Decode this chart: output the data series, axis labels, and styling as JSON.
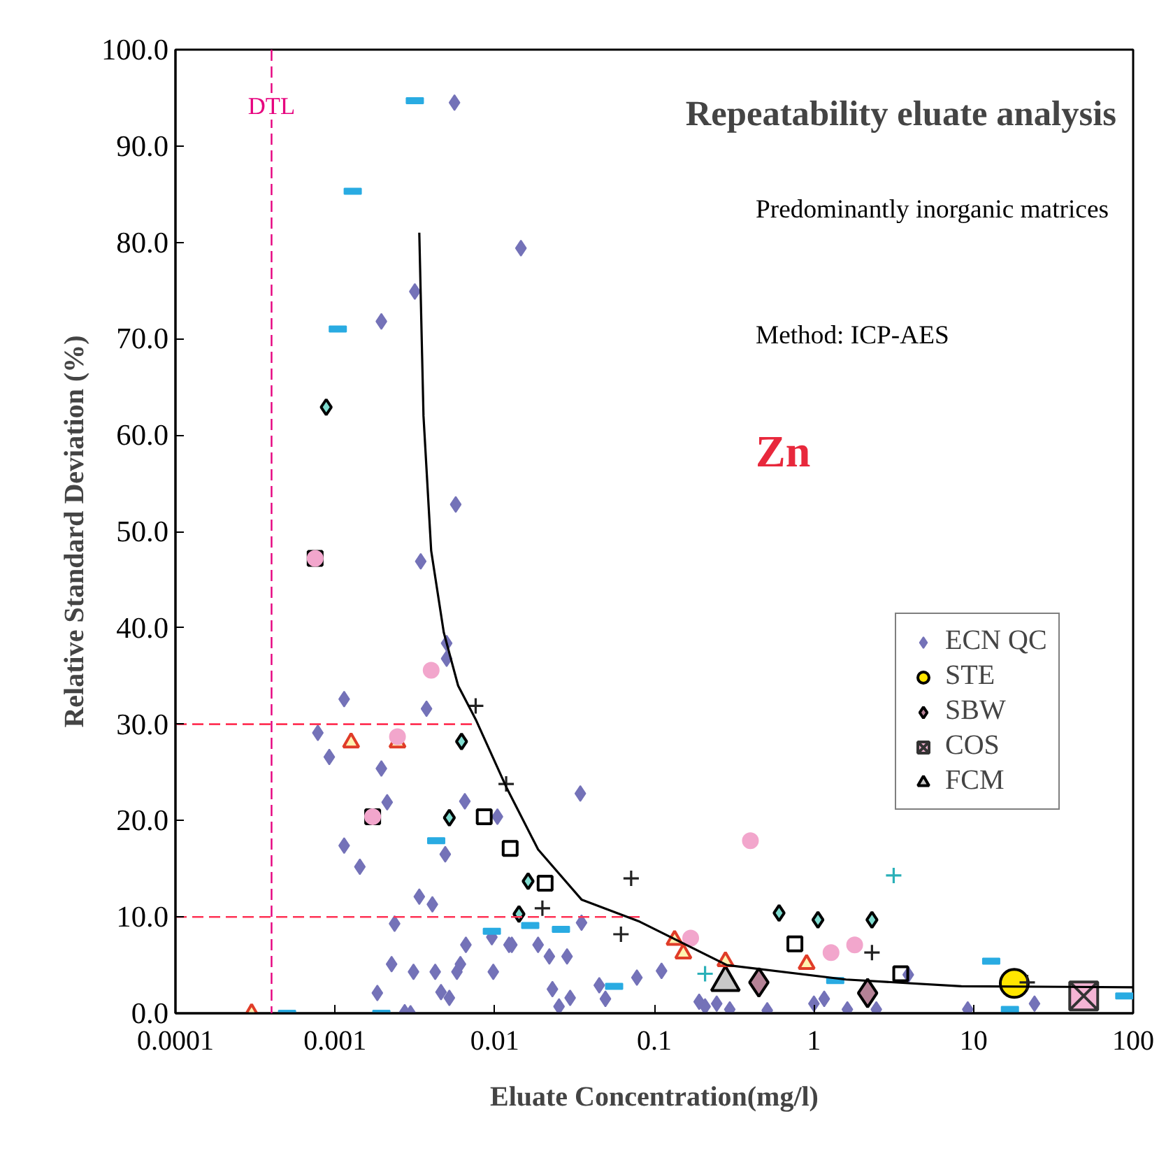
{
  "chart_data": {
    "type": "scatter",
    "title": "Repeatability eluate analysis",
    "xlabel": "Eluate Concentration(mg/l)",
    "ylabel": "Relative Standard Deviation (%)",
    "annotations": [
      "Predominantly inorganic matrices",
      "Method: ICP-AES",
      "Zn"
    ],
    "log": "x",
    "xlim": [
      0.0001,
      100
    ],
    "xticks": [
      0.0001,
      0.001,
      0.01,
      0.1,
      1,
      10,
      100
    ],
    "ylim": [
      0,
      100
    ],
    "yticks": [
      {
        "value": 0,
        "label": "0.0"
      },
      {
        "value": 10,
        "label": "10.0"
      },
      {
        "value": 20,
        "label": "20.0"
      },
      {
        "value": 30,
        "label": "30.0"
      },
      {
        "value": 40,
        "label": "40.0"
      },
      {
        "value": 50,
        "label": "50.0"
      },
      {
        "value": 60,
        "label": "60.0"
      },
      {
        "value": 70,
        "label": "70.0"
      },
      {
        "value": 80,
        "label": "80.0"
      },
      {
        "value": 90,
        "label": "90.0"
      },
      {
        "value": 100,
        "label": "100.0"
      }
    ],
    "grid": false,
    "legend": "right",
    "ref_lines": [
      {
        "axis": "x",
        "value": 0.0004,
        "label": "DTL",
        "color": "#e6007e",
        "line_style": "dashed"
      }
    ],
    "series": [
      {
        "name": "ECN QC",
        "color": "#7472b8",
        "marker": "diamond",
        "x": [
          0.00078,
          0.00092,
          0.00114,
          0.00143,
          0.00184,
          0.00195,
          0.00212,
          0.00226,
          0.00236,
          0.00273,
          0.00297,
          0.0031,
          0.00316,
          0.00337,
          0.00344,
          0.00374,
          0.00407,
          0.00424,
          0.00461,
          0.0049,
          0.005,
          0.005,
          0.0052,
          0.0056,
          0.0057,
          0.0058,
          0.0061,
          0.0065,
          0.0066,
          0.0096,
          0.0098,
          0.0104,
          0.0123,
          0.0128,
          0.0146,
          0.0187,
          0.022,
          0.023,
          0.0253,
          0.0284,
          0.0297,
          0.0344,
          0.035,
          0.0452,
          0.0494,
          0.0778,
          0.111,
          0.191,
          0.208,
          0.246,
          0.297,
          0.51,
          1.0,
          1.16,
          1.62,
          2.46,
          3.9,
          9.2,
          24.1,
          0.00114,
          0.00195
        ],
        "values": [
          29.1,
          26.6,
          32.6,
          15.2,
          2.1,
          25.4,
          21.9,
          5.1,
          9.3,
          0.1,
          0,
          4.3,
          74.9,
          12.1,
          46.9,
          31.6,
          11.3,
          4.3,
          2.2,
          16.5,
          38.4,
          36.8,
          1.6,
          94.5,
          52.8,
          4.3,
          5.1,
          22,
          7.1,
          7.9,
          4.3,
          20.4,
          7.1,
          7.1,
          79.4,
          7.1,
          5.9,
          2.5,
          0.7,
          5.9,
          1.6,
          22.8,
          9.4,
          2.9,
          1.5,
          3.7,
          4.4,
          1.2,
          0.7,
          1.0,
          0.4,
          0.3,
          1.0,
          1.5,
          0.4,
          0.4,
          4.0,
          0.4,
          1.0,
          17.4,
          71.8
        ]
      },
      {
        "name": "STE",
        "color": "#ffe600",
        "marker": "circle",
        "x": [
          18.0
        ],
        "values": [
          3.1
        ]
      },
      {
        "name": "SBW",
        "color": "#b48296",
        "marker": "diamond",
        "x": [
          0.452,
          2.17
        ],
        "values": [
          3.2,
          2.1
        ]
      },
      {
        "name": "COS",
        "color": "#f4b4d4",
        "marker": "cross",
        "x": [
          49
        ],
        "values": [
          1.8
        ]
      },
      {
        "name": "FCM",
        "color": "#c8c8c8",
        "marker": "triangle",
        "x": [
          0.279
        ],
        "values": [
          3.2
        ]
      },
      {
        "color": "#29abe2",
        "marker": "square",
        "x": [
          0.00316,
          0.00129,
          0.00104,
          0.0005,
          0.00195,
          0.0043,
          0.0096,
          0.0167,
          0.026,
          0.056,
          1.36,
          12.9,
          16.9,
          88
        ],
        "values": [
          94.7,
          85.3,
          71,
          0,
          0,
          17.9,
          8.5,
          9.1,
          8.7,
          2.8,
          3.4,
          5.4,
          0.4,
          1.8
        ]
      },
      {
        "color": "#222222",
        "marker": "cross",
        "x": [
          0.0076,
          0.0118,
          0.0199,
          0.0716,
          0.0618,
          2.31,
          21.7
        ],
        "values": [
          31.9,
          23.8,
          10.9,
          14.0,
          8.2,
          6.3,
          3.2
        ]
      },
      {
        "color": "#2ab0b8",
        "marker": "cross",
        "x": [
          0.208,
          3.16
        ],
        "values": [
          4.1,
          14.3
        ]
      },
      {
        "color": "#000000",
        "marker": "square",
        "x": [
          0.00075,
          0.00172,
          0.0086,
          0.0125,
          0.0207,
          0.76,
          3.5
        ],
        "values": [
          47.2,
          20.4,
          20.4,
          17.1,
          13.5,
          7.2,
          4.1
        ]
      },
      {
        "color": "#7fdcd0",
        "marker": "diamond",
        "x": [
          0.00088,
          0.0062,
          0.0052,
          0.0162,
          0.0142,
          0.605,
          1.06,
          2.31
        ],
        "values": [
          62.9,
          28.2,
          20.3,
          13.7,
          10.3,
          10.4,
          9.7,
          9.7
        ]
      },
      {
        "color": "#e03c28",
        "marker": "triangle",
        "x": [
          0.0003,
          0.00126,
          0.00246,
          0.134,
          0.152,
          0.279,
          0.9
        ],
        "values": [
          0,
          28.1,
          28.1,
          7.6,
          6.2,
          5.4,
          5.1
        ]
      },
      {
        "color": "#f2a6cc",
        "marker": "circle",
        "x": [
          0.004,
          0.00246,
          0.00172,
          0.00075,
          0.4,
          0.169,
          1.28,
          1.8
        ],
        "values": [
          35.6,
          28.7,
          20.4,
          47.2,
          17.9,
          7.8,
          6.3,
          7.1
        ]
      },
      {
        "type": "line",
        "color": "#ff3355",
        "line_style": "dashed",
        "marker": "none",
        "x": [
          0.0001,
          0.0073
        ],
        "values": [
          30,
          30
        ]
      },
      {
        "type": "line",
        "color": "#ff3355",
        "line_style": "dashed",
        "marker": "none",
        "x": [
          0.0001,
          0.081
        ],
        "values": [
          10,
          10
        ]
      },
      {
        "type": "line",
        "color": "#000000",
        "line_style": "solid",
        "marker": "none",
        "x": [
          0.00337,
          0.00358,
          0.004,
          0.0048,
          0.0059,
          0.0076,
          0.0118,
          0.0187,
          0.035,
          0.0811,
          0.285,
          1.59,
          8.4,
          100
        ],
        "values": [
          81,
          62,
          48,
          39.5,
          34,
          30.5,
          23.5,
          17,
          11.8,
          9.5,
          5.0,
          3.5,
          2.8,
          2.7
        ]
      }
    ]
  }
}
